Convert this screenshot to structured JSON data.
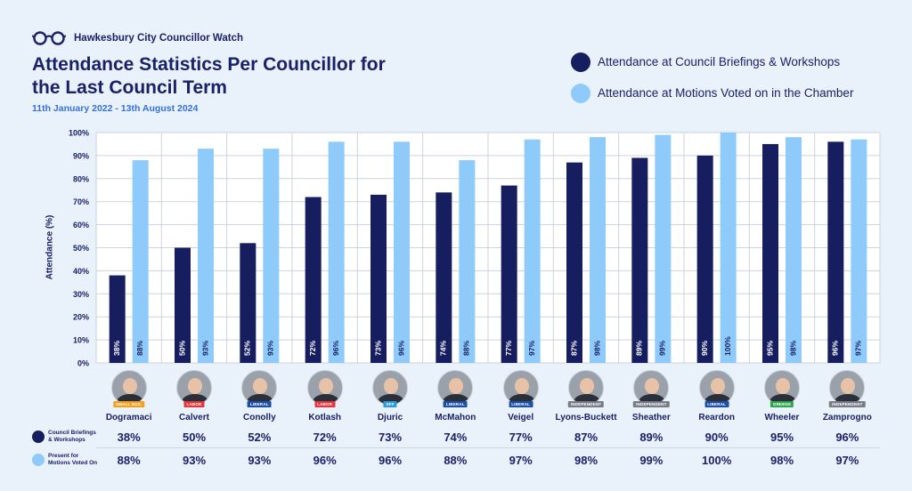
{
  "brand": {
    "name": "Hawkesbury City Councillor Watch",
    "icon": "glasses-icon"
  },
  "title": "Attendance Statistics Per Councillor for the Last Council Term",
  "date_range": "11th January 2022 - 13th August 2024",
  "colors": {
    "briefings": "#161e5f",
    "motions": "#8ecbfb",
    "text": "#1a2166",
    "accent": "#3570e0"
  },
  "legend": [
    {
      "label": "Attendance at Council Briefings & Workshops",
      "color": "#161e5f"
    },
    {
      "label": "Attendance at Motions Voted on in the Chamber",
      "color": "#8ecbfb"
    }
  ],
  "rows": {
    "briefings_label_line1": "Council Briefings",
    "briefings_label_line2": "& Workshops",
    "motions_label_line1": "Present for",
    "motions_label_line2": "Motions Voted On"
  },
  "councillors": [
    {
      "name": "Dogramaci",
      "party": "SMALL BUS.",
      "party_color": "#f4a01c",
      "briefings_label": "38%",
      "motions_label": "88%"
    },
    {
      "name": "Calvert",
      "party": "LABOR",
      "party_color": "#e8343a",
      "briefings_label": "50%",
      "motions_label": "93%"
    },
    {
      "name": "Conolly",
      "party": "LIBERAL",
      "party_color": "#1c4fa8",
      "briefings_label": "52%",
      "motions_label": "93%"
    },
    {
      "name": "Kotlash",
      "party": "LABOR",
      "party_color": "#e8343a",
      "briefings_label": "72%",
      "motions_label": "96%"
    },
    {
      "name": "Djuric",
      "party": "SFF",
      "party_color": "#2a9ad8",
      "briefings_label": "73%",
      "motions_label": "96%"
    },
    {
      "name": "McMahon",
      "party": "LIBERAL",
      "party_color": "#1c4fa8",
      "briefings_label": "74%",
      "motions_label": "88%"
    },
    {
      "name": "Veigel",
      "party": "LIBERAL",
      "party_color": "#1c4fa8",
      "briefings_label": "77%",
      "motions_label": "97%"
    },
    {
      "name": "Lyons-Buckett",
      "party": "INDEPENDENT",
      "party_color": "#777b84",
      "briefings_label": "87%",
      "motions_label": "98%"
    },
    {
      "name": "Sheather",
      "party": "INDEPENDENT",
      "party_color": "#777b84",
      "briefings_label": "89%",
      "motions_label": "99%"
    },
    {
      "name": "Reardon",
      "party": "LIBERAL",
      "party_color": "#1c4fa8",
      "briefings_label": "90%",
      "motions_label": "100%"
    },
    {
      "name": "Wheeler",
      "party": "GREENS",
      "party_color": "#2ca84a",
      "briefings_label": "95%",
      "motions_label": "98%"
    },
    {
      "name": "Zamprogno",
      "party": "INDEPENDENT",
      "party_color": "#777b84",
      "briefings_label": "96%",
      "motions_label": "97%"
    }
  ],
  "chart_data": {
    "type": "bar",
    "ylabel": "Attendance (%)",
    "ylim": [
      0,
      100
    ],
    "yticks": [
      "0%",
      "10%",
      "20%",
      "30%",
      "40%",
      "50%",
      "60%",
      "70%",
      "80%",
      "90%",
      "100%"
    ],
    "grid": true,
    "categories": [
      "Dogramaci",
      "Calvert",
      "Conolly",
      "Kotlash",
      "Djuric",
      "McMahon",
      "Veigel",
      "Lyons-Buckett",
      "Sheather",
      "Reardon",
      "Wheeler",
      "Zamprogno"
    ],
    "series": [
      {
        "name": "Attendance at Council Briefings & Workshops",
        "color": "#161e5f",
        "values": [
          38,
          50,
          52,
          72,
          73,
          74,
          77,
          87,
          89,
          90,
          95,
          96
        ],
        "labels": [
          "38%",
          "50%",
          "52%",
          "72%",
          "73%",
          "74%",
          "77%",
          "87%",
          "89%",
          "90%",
          "95%",
          "96%"
        ]
      },
      {
        "name": "Attendance at Motions Voted on in the Chamber",
        "color": "#8ecbfb",
        "values": [
          88,
          93,
          93,
          96,
          96,
          88,
          97,
          98,
          99,
          100,
          98,
          97
        ],
        "labels": [
          "88%",
          "93%",
          "93%",
          "96%",
          "96%",
          "88%",
          "97%",
          "98%",
          "99%",
          "100%",
          "98%",
          "97%"
        ]
      }
    ],
    "legend": "top-right"
  }
}
